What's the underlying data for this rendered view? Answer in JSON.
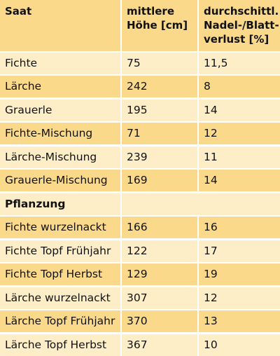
{
  "header": {
    "col1": "Saat",
    "col2": "mittlere Höhe [cm]",
    "col3": "durchschittl. Nadel-/Blatt­verlust [%]"
  },
  "saat_rows": [
    {
      "name": "Fichte",
      "height": "75",
      "loss": "11,5"
    },
    {
      "name": "Lärche",
      "height": "242",
      "loss": "8"
    },
    {
      "name": "Grauerle",
      "height": "195",
      "loss": "14"
    },
    {
      "name": "Fichte-Mischung",
      "height": "71",
      "loss": "12"
    },
    {
      "name": "Lärche-Mischung",
      "height": "239",
      "loss": "11"
    },
    {
      "name": "Grauerle-Mischung",
      "height": "169",
      "loss": "14"
    }
  ],
  "section": {
    "label": "Pflanzung"
  },
  "pflanzung_rows": [
    {
      "name": "Fichte wurzelnackt",
      "height": "166",
      "loss": "16"
    },
    {
      "name": "Fichte Topf Frühjahr",
      "height": "122",
      "loss": "17"
    },
    {
      "name": "Fichte Topf Herbst",
      "height": "129",
      "loss": "19"
    },
    {
      "name": "Lärche wurzelnackt",
      "height": "307",
      "loss": "12"
    },
    {
      "name": "Lärche Topf Frühjahr",
      "height": "370",
      "loss": "13"
    },
    {
      "name": "Lärche Topf Herbst",
      "height": "367",
      "loss": "10"
    }
  ],
  "colors": {
    "dark_row": "#fad98a",
    "light_row": "#fdeec7"
  }
}
